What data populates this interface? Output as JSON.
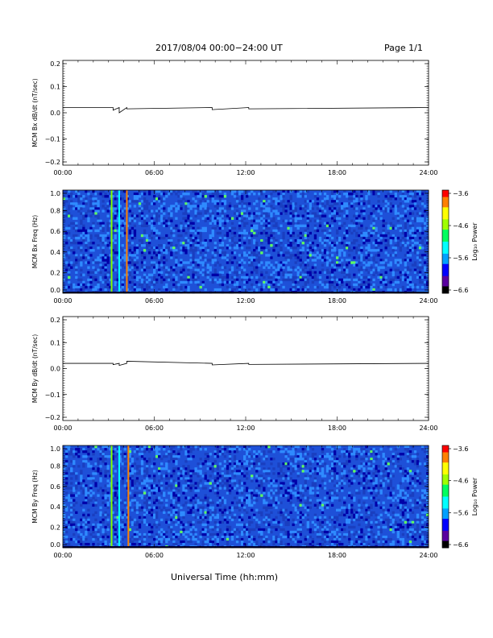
{
  "header": {
    "title": "2017/08/04  00:00−24:00 UT",
    "page": "Page 1/1"
  },
  "footer": {
    "xlabel": "Universal Time (hh:mm)"
  },
  "colors": {
    "background": "#ffffff",
    "axis": "#000000",
    "spectrogram_base": "#1e50d8",
    "colormap": [
      "#000000",
      "#5a00a0",
      "#0000ff",
      "#00a0ff",
      "#00ffff",
      "#00ff60",
      "#a0ff00",
      "#ffff00",
      "#ff8000",
      "#ff0000"
    ]
  },
  "chart_data": [
    {
      "type": "line",
      "ylabel": "MCM Bx dB/dt (nT/sec)",
      "ylim": [
        -0.2,
        0.2
      ],
      "yticks": [
        "0.2",
        "0.1",
        "0.0",
        "−0.1",
        "−0.2"
      ],
      "xlim": [
        0,
        24
      ],
      "xticks": [
        "00:00",
        "06:00",
        "12:00",
        "18:00",
        "24:00"
      ],
      "baseline": 0.02,
      "x": [
        0,
        3.3,
        3.3,
        3.7,
        3.7,
        4.2,
        4.2,
        9.8,
        9.8,
        12.2,
        12.2,
        24
      ],
      "y": [
        0.02,
        0.02,
        0.01,
        0.02,
        0.0,
        0.02,
        0.015,
        0.02,
        0.012,
        0.02,
        0.015,
        0.02
      ]
    },
    {
      "type": "heatmap",
      "ylabel": "MCM Bx Freq (Hz)",
      "ylim": [
        0.0,
        1.0
      ],
      "yticks": [
        "1.0",
        "0.8",
        "0.6",
        "0.4",
        "0.2",
        "0.0"
      ],
      "xlim": [
        0,
        24
      ],
      "xticks": [
        "00:00",
        "06:00",
        "12:00",
        "18:00",
        "24:00"
      ],
      "colorbar_label": "Log₁₀ Power",
      "colorbar_range": [
        -6.6,
        -3.6
      ],
      "colorbar_ticks": [
        "−3.6",
        "−4.6",
        "−5.6",
        "−6.6"
      ],
      "bright_times": [
        3.2,
        3.7,
        4.2
      ]
    },
    {
      "type": "line",
      "ylabel": "MCM By dB/dt (nT/sec)",
      "ylim": [
        -0.2,
        0.2
      ],
      "yticks": [
        "0.2",
        "0.1",
        "0.0",
        "−0.1",
        "−0.2"
      ],
      "xlim": [
        0,
        24
      ],
      "xticks": [
        "00:00",
        "06:00",
        "12:00",
        "18:00",
        "24:00"
      ],
      "baseline": 0.02,
      "x": [
        0,
        3.3,
        3.3,
        3.7,
        3.7,
        4.2,
        4.2,
        9.8,
        9.8,
        12.2,
        12.2,
        24
      ],
      "y": [
        0.02,
        0.02,
        0.015,
        0.02,
        0.012,
        0.02,
        0.028,
        0.02,
        0.014,
        0.02,
        0.016,
        0.02
      ]
    },
    {
      "type": "heatmap",
      "ylabel": "MCM By Freq (Hz)",
      "ylim": [
        0.0,
        1.0
      ],
      "yticks": [
        "1.0",
        "0.8",
        "0.6",
        "0.4",
        "0.2",
        "0.0"
      ],
      "xlim": [
        0,
        24
      ],
      "xticks": [
        "00:00",
        "06:00",
        "12:00",
        "18:00",
        "24:00"
      ],
      "colorbar_label": "Log₁₀ Power",
      "colorbar_range": [
        -6.6,
        -3.6
      ],
      "colorbar_ticks": [
        "−3.6",
        "−4.6",
        "−5.6",
        "−6.6"
      ],
      "bright_times": [
        3.2,
        3.7,
        4.3
      ]
    }
  ]
}
